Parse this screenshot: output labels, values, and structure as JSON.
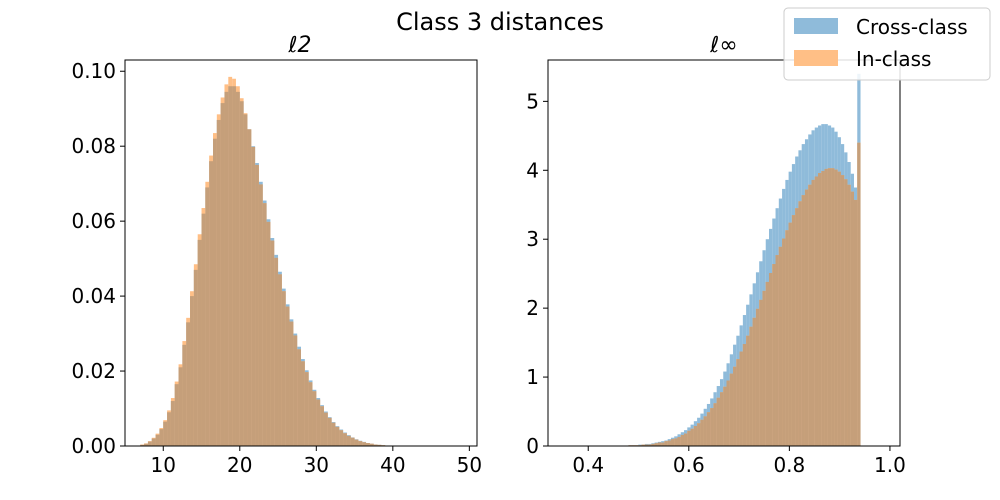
{
  "figure": {
    "title": "Class 3 distances"
  },
  "legend": {
    "placement": "top-right",
    "entries": [
      {
        "label": "Cross-class",
        "color": "#1f77b4"
      },
      {
        "label": "In-class",
        "color": "#ff7f0e"
      }
    ]
  },
  "colors": {
    "cross_fill": "#8fbbda",
    "in_fill": "#ffbf86",
    "overlap_fill": "#c59f7a"
  },
  "chart_data": [
    {
      "type": "histogram",
      "title": "ℓ2",
      "xlabel": "",
      "ylabel": "",
      "xlim": [
        5.0,
        51.0
      ],
      "ylim": [
        0,
        0.103
      ],
      "xticks": [
        10,
        20,
        30,
        40,
        50
      ],
      "yticks": [
        0.0,
        0.02,
        0.04,
        0.06,
        0.08,
        0.1
      ],
      "ytick_labels": [
        "0.00",
        "0.02",
        "0.04",
        "0.06",
        "0.08",
        "0.10"
      ],
      "bins": {
        "start": 7.0,
        "width": 0.5
      },
      "series": [
        {
          "name": "Cross-class",
          "values": [
            0.0003,
            0.0006,
            0.0012,
            0.002,
            0.003,
            0.0045,
            0.0065,
            0.009,
            0.012,
            0.0165,
            0.021,
            0.027,
            0.033,
            0.04,
            0.047,
            0.055,
            0.062,
            0.069,
            0.076,
            0.082,
            0.087,
            0.0915,
            0.0945,
            0.096,
            0.096,
            0.0945,
            0.092,
            0.0885,
            0.0845,
            0.08,
            0.0755,
            0.0705,
            0.0655,
            0.0605,
            0.0555,
            0.051,
            0.0465,
            0.042,
            0.0378,
            0.0338,
            0.03,
            0.0265,
            0.0232,
            0.0202,
            0.0175,
            0.015,
            0.0128,
            0.0109,
            0.0092,
            0.0077,
            0.0064,
            0.0053,
            0.0044,
            0.0036,
            0.0029,
            0.0023,
            0.0018,
            0.0014,
            0.0011,
            0.0008,
            0.0006,
            0.0004,
            0.0003,
            0.0002,
            0.0001,
            0.0001
          ]
        },
        {
          "name": "In-class",
          "values": [
            0.0004,
            0.0007,
            0.0013,
            0.0022,
            0.0033,
            0.0048,
            0.0069,
            0.0095,
            0.0128,
            0.0172,
            0.0218,
            0.028,
            0.0342,
            0.0413,
            0.0485,
            0.0565,
            0.0635,
            0.0705,
            0.0775,
            0.0835,
            0.0885,
            0.093,
            0.0965,
            0.0985,
            0.098,
            0.096,
            0.0928,
            0.0888,
            0.0845,
            0.0798,
            0.075,
            0.0698,
            0.0648,
            0.0598,
            0.0548,
            0.0502,
            0.0458,
            0.0413,
            0.0372,
            0.0332,
            0.0295,
            0.0258,
            0.0226,
            0.0197,
            0.017,
            0.0146,
            0.0124,
            0.0106,
            0.0089,
            0.0075,
            0.0062,
            0.0051,
            0.0042,
            0.0034,
            0.0027,
            0.0022,
            0.0017,
            0.0013,
            0.001,
            0.0008,
            0.0006,
            0.0004,
            0.0003,
            0.0002,
            0.0001,
            0.0001
          ]
        }
      ]
    },
    {
      "type": "histogram",
      "title": "ℓ∞",
      "xlabel": "",
      "ylabel": "",
      "xlim": [
        0.32,
        1.02
      ],
      "ylim": [
        0,
        5.6
      ],
      "xticks": [
        0.4,
        0.6,
        0.8,
        1.0
      ],
      "xtick_labels": [
        "0.4",
        "0.6",
        "0.8",
        "1.0"
      ],
      "yticks": [
        0,
        1,
        2,
        3,
        4,
        5
      ],
      "ytick_labels": [
        "0",
        "1",
        "2",
        "3",
        "4",
        "5"
      ],
      "bins": {
        "start": 0.35,
        "width": 0.0065
      },
      "series": [
        {
          "name": "Cross-class",
          "values": [
            0.0,
            0.0,
            0.0,
            0.0,
            0.0,
            0.0,
            0.0,
            0.0,
            0.0,
            0.0,
            0.0,
            0.0,
            0.0,
            0.0,
            0.0,
            0.0,
            0.0,
            0.0,
            0.0,
            0.0,
            0.01,
            0.01,
            0.01,
            0.02,
            0.02,
            0.03,
            0.03,
            0.04,
            0.05,
            0.06,
            0.07,
            0.08,
            0.1,
            0.12,
            0.14,
            0.17,
            0.2,
            0.23,
            0.27,
            0.31,
            0.36,
            0.41,
            0.47,
            0.54,
            0.61,
            0.69,
            0.78,
            0.87,
            0.97,
            1.08,
            1.2,
            1.33,
            1.47,
            1.6,
            1.75,
            1.9,
            2.05,
            2.2,
            2.36,
            2.52,
            2.68,
            2.84,
            3.0,
            3.15,
            3.3,
            3.45,
            3.59,
            3.73,
            3.86,
            3.98,
            4.09,
            4.2,
            4.29,
            4.38,
            4.45,
            4.52,
            4.58,
            4.62,
            4.65,
            4.67,
            4.67,
            4.65,
            4.62,
            4.56,
            4.48,
            4.38,
            4.26,
            4.12,
            3.95,
            3.75,
            5.4
          ]
        },
        {
          "name": "In-class",
          "values": [
            0.0,
            0.0,
            0.0,
            0.0,
            0.0,
            0.0,
            0.0,
            0.0,
            0.0,
            0.0,
            0.0,
            0.0,
            0.0,
            0.0,
            0.0,
            0.0,
            0.0,
            0.0,
            0.0,
            0.0,
            0.01,
            0.01,
            0.01,
            0.01,
            0.02,
            0.02,
            0.02,
            0.03,
            0.04,
            0.05,
            0.05,
            0.07,
            0.08,
            0.1,
            0.11,
            0.13,
            0.16,
            0.18,
            0.22,
            0.25,
            0.29,
            0.33,
            0.38,
            0.43,
            0.49,
            0.55,
            0.62,
            0.7,
            0.78,
            0.86,
            0.95,
            1.05,
            1.15,
            1.26,
            1.37,
            1.48,
            1.6,
            1.73,
            1.86,
            1.99,
            2.12,
            2.25,
            2.38,
            2.51,
            2.64,
            2.77,
            2.89,
            3.01,
            3.13,
            3.24,
            3.35,
            3.45,
            3.55,
            3.64,
            3.72,
            3.79,
            3.86,
            3.91,
            3.96,
            3.99,
            4.02,
            4.03,
            4.03,
            4.01,
            3.98,
            3.93,
            3.87,
            3.79,
            3.69,
            3.57,
            4.4
          ]
        }
      ]
    }
  ]
}
